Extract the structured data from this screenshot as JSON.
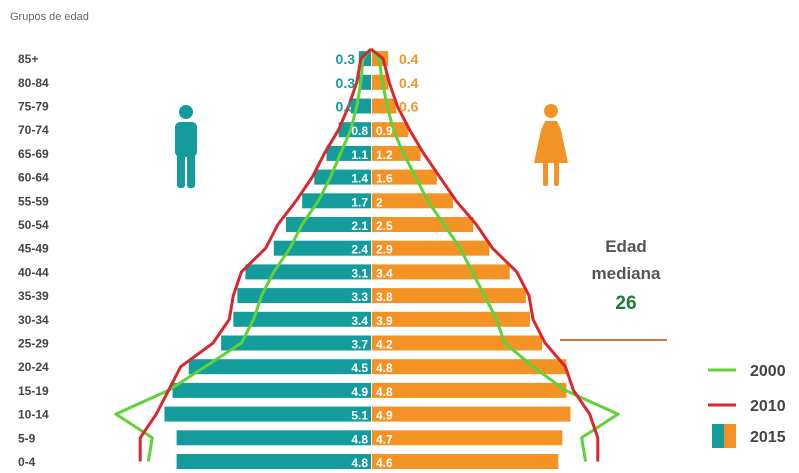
{
  "chart_data": {
    "type": "bar",
    "y_axis_title": "Grupos de edad",
    "categories": [
      "0-4",
      "5-9",
      "10-14",
      "15-19",
      "20-24",
      "25-29",
      "30-34",
      "35-39",
      "40-44",
      "45-49",
      "50-54",
      "55-59",
      "60-64",
      "65-69",
      "70-74",
      "75-79",
      "80-84",
      "85+"
    ],
    "series": [
      {
        "name": "Hombres",
        "color": "#149b9c",
        "values": [
          4.8,
          4.8,
          5.1,
          4.9,
          4.5,
          3.7,
          3.4,
          3.3,
          3.1,
          2.4,
          2.1,
          1.7,
          1.4,
          1.1,
          0.8,
          0.5,
          0.3,
          0.3
        ]
      },
      {
        "name": "Mujeres",
        "color": "#f39325",
        "values": [
          4.6,
          4.7,
          4.9,
          4.8,
          4.8,
          4.2,
          3.9,
          3.8,
          3.4,
          2.9,
          2.5,
          2.0,
          1.6,
          1.2,
          0.9,
          0.6,
          0.4,
          0.4
        ]
      }
    ],
    "outline_series": [
      {
        "name": "2000",
        "color": "#5fd23a"
      },
      {
        "name": "2010",
        "color": "#d6292f"
      }
    ],
    "legend": {
      "position": "bottom-right",
      "entries": [
        "2000",
        "2010",
        "2015"
      ]
    },
    "median": {
      "label_line1": "Edad",
      "label_line2": "mediana",
      "value": "26"
    },
    "icons": [
      "male-icon",
      "female-icon"
    ]
  }
}
